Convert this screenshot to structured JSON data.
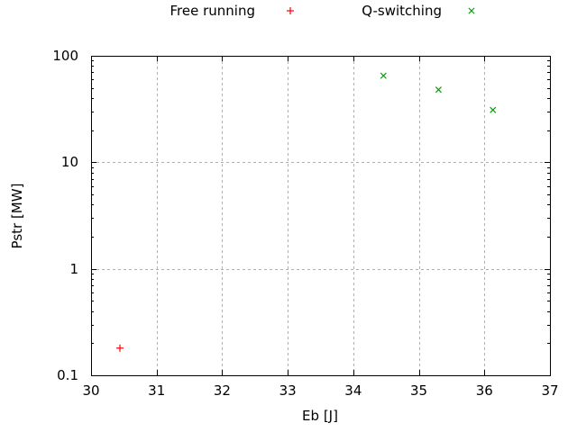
{
  "colors": {
    "background": "#ffffff",
    "axis": "#000000",
    "grid": "#b0b0b0",
    "text": "#000000",
    "free_running": "#ff0000",
    "q_switching": "#00a000"
  },
  "legend": {
    "entries": [
      {
        "label": "Free running",
        "marker": "plus",
        "color": "#ff0000"
      },
      {
        "label": "Q-switching",
        "marker": "cross",
        "color": "#00a000"
      }
    ]
  },
  "chart_data": {
    "type": "scatter",
    "title": "",
    "xlabel": "Eb [J]",
    "ylabel": "Pstr [MW]",
    "xlim": [
      30,
      37
    ],
    "ylim": [
      0.1,
      100
    ],
    "xscale": "linear",
    "yscale": "log",
    "grid": true,
    "legend_position": "top-center",
    "xticks": [
      30,
      31,
      32,
      33,
      34,
      35,
      36,
      37
    ],
    "xtick_labels": [
      "30",
      "31",
      "32",
      "33",
      "34",
      "35",
      "36",
      "37"
    ],
    "yticks": [
      0.1,
      1,
      10,
      100
    ],
    "ytick_labels": [
      "0.1",
      "1",
      "10",
      "100"
    ],
    "series": [
      {
        "name": "Free running",
        "marker": "plus",
        "color": "#ff0000",
        "points": [
          [
            30.44,
            0.18
          ]
        ]
      },
      {
        "name": "Q-switching",
        "marker": "cross",
        "color": "#00a000",
        "points": [
          [
            34.46,
            65
          ],
          [
            35.3,
            48
          ],
          [
            36.13,
            31
          ]
        ]
      }
    ]
  }
}
